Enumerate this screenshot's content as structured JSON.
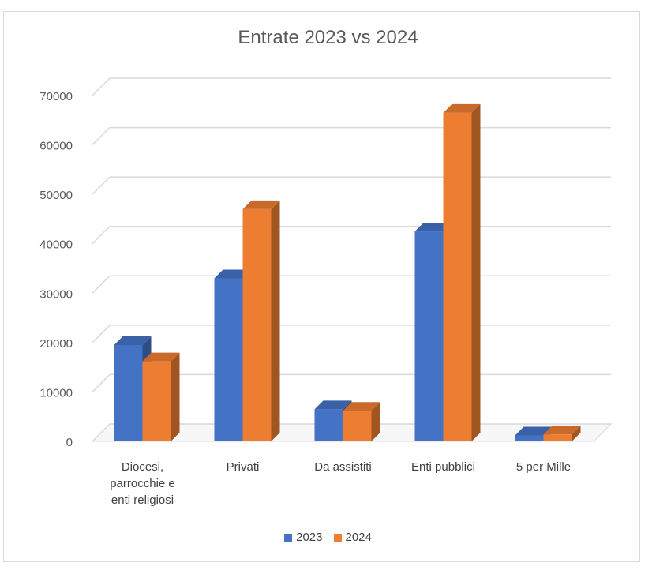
{
  "chart_data": {
    "type": "bar",
    "title": "Entrate 2023 vs 2024",
    "categories": [
      [
        "Diocesi,",
        "parrocchie e",
        "enti religiosi"
      ],
      [
        "Privati"
      ],
      [
        "Da assistiti"
      ],
      [
        "Enti pubblici"
      ],
      [
        "5 per Mille"
      ]
    ],
    "series": [
      {
        "name": "2023",
        "values": [
          19500,
          33000,
          6500,
          42500,
          1200
        ],
        "color": "#4472C4"
      },
      {
        "name": "2024",
        "values": [
          16200,
          47000,
          6200,
          66500,
          1400
        ],
        "color": "#ED7D31"
      }
    ],
    "yticks": [
      "0",
      "10000",
      "20000",
      "30000",
      "40000",
      "50000",
      "60000",
      "70000"
    ],
    "ylim": [
      0,
      70000
    ],
    "grid": true,
    "legend": "bottom"
  }
}
